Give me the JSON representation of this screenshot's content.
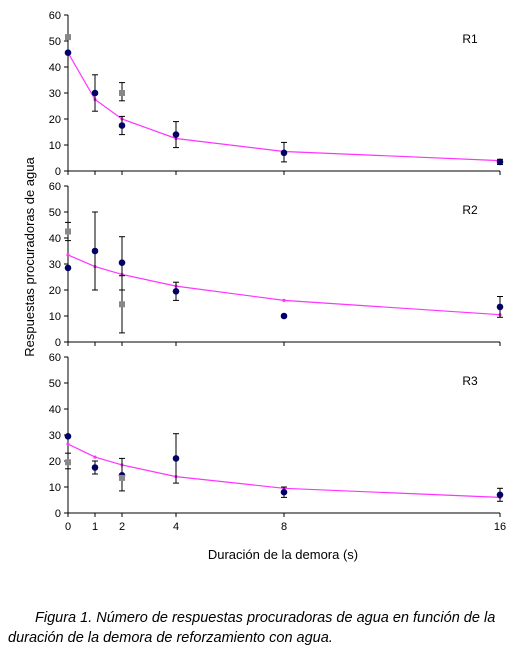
{
  "figure": {
    "ylabel": "Respuestas procuradoras de agua",
    "xlabel": "Duración de la demora (s)",
    "caption_line1": "Figura 1. Número de respuestas procuradoras de agua en función de la",
    "caption_line2": "duración de la demora de reforzamiento con agua."
  },
  "colors": {
    "fit_line": "#ff33ff",
    "blue_points": "#000066",
    "gray_points": "#888888",
    "axis": "#000000"
  },
  "chart_data": [
    {
      "type": "scatter",
      "label": "R1",
      "xticks": [
        0,
        1,
        2,
        4,
        8,
        16
      ],
      "yticks": [
        0,
        10,
        20,
        30,
        40,
        50,
        60
      ],
      "ylim": [
        0,
        60
      ],
      "series": [
        {
          "marker": "circle",
          "color": "#000066",
          "points": [
            {
              "x": 0,
              "y": 45.5
            },
            {
              "x": 1,
              "y": 30,
              "err": [
                23,
                37
              ]
            },
            {
              "x": 2,
              "y": 17.5,
              "err": [
                14,
                21
              ]
            },
            {
              "x": 4,
              "y": 14,
              "err": [
                9,
                19
              ]
            },
            {
              "x": 8,
              "y": 7,
              "err": [
                3.5,
                11
              ]
            },
            {
              "x": 16,
              "y": 3.5,
              "err": [
                2.5,
                4.5
              ]
            }
          ]
        },
        {
          "marker": "square",
          "color": "#888888",
          "points": [
            {
              "x": 0,
              "y": 51.5
            },
            {
              "x": 2,
              "y": 30,
              "err": [
                27,
                34
              ]
            }
          ]
        },
        {
          "marker": "line",
          "color": "#ff33ff",
          "points": [
            {
              "x": 0,
              "y": 45.5
            },
            {
              "x": 1,
              "y": 27.5
            },
            {
              "x": 2,
              "y": 20
            },
            {
              "x": 4,
              "y": 12.5
            },
            {
              "x": 8,
              "y": 7.5
            },
            {
              "x": 16,
              "y": 4
            }
          ]
        }
      ]
    },
    {
      "type": "scatter",
      "label": "R2",
      "xticks": [
        0,
        1,
        2,
        4,
        8,
        16
      ],
      "yticks": [
        0,
        10,
        20,
        30,
        40,
        50,
        60
      ],
      "ylim": [
        0,
        60
      ],
      "series": [
        {
          "marker": "circle",
          "color": "#000066",
          "points": [
            {
              "x": 0,
              "y": 28.5
            },
            {
              "x": 1,
              "y": 35,
              "err": [
                20,
                50
              ]
            },
            {
              "x": 2,
              "y": 30.5,
              "err": [
                20,
                40.5
              ]
            },
            {
              "x": 4,
              "y": 19.5,
              "err": [
                16,
                23
              ]
            },
            {
              "x": 8,
              "y": 10
            },
            {
              "x": 16,
              "y": 13.5,
              "err": [
                9.5,
                17.5
              ]
            }
          ]
        },
        {
          "marker": "square",
          "color": "#888888",
          "points": [
            {
              "x": 0,
              "y": 42.5,
              "err": [
                39,
                46
              ]
            },
            {
              "x": 2,
              "y": 14.5,
              "err": [
                3.5,
                25.5
              ]
            }
          ]
        },
        {
          "marker": "line",
          "color": "#ff33ff",
          "points": [
            {
              "x": 0,
              "y": 33.5
            },
            {
              "x": 1,
              "y": 29
            },
            {
              "x": 2,
              "y": 26
            },
            {
              "x": 4,
              "y": 21.5
            },
            {
              "x": 8,
              "y": 16
            },
            {
              "x": 16,
              "y": 10.5
            }
          ]
        }
      ]
    },
    {
      "type": "scatter",
      "label": "R3",
      "xticks": [
        0,
        1,
        2,
        4,
        8,
        16
      ],
      "yticks": [
        0,
        10,
        20,
        30,
        40,
        50,
        60
      ],
      "ylim": [
        0,
        60
      ],
      "series": [
        {
          "marker": "circle",
          "color": "#000066",
          "points": [
            {
              "x": 0,
              "y": 29.5
            },
            {
              "x": 1,
              "y": 17.5,
              "err": [
                15,
                20
              ]
            },
            {
              "x": 2,
              "y": 14.5,
              "err": [
                8.5,
                21
              ]
            },
            {
              "x": 4,
              "y": 21,
              "err": [
                11.5,
                30.5
              ]
            },
            {
              "x": 8,
              "y": 8,
              "err": [
                6,
                10
              ]
            },
            {
              "x": 16,
              "y": 7,
              "err": [
                4.5,
                9.5
              ]
            }
          ]
        },
        {
          "marker": "square",
          "color": "#888888",
          "points": [
            {
              "x": 0,
              "y": 19.5,
              "err": [
                17,
                23
              ]
            },
            {
              "x": 2,
              "y": 13.5
            }
          ]
        },
        {
          "marker": "line",
          "color": "#ff33ff",
          "points": [
            {
              "x": 0,
              "y": 26.5
            },
            {
              "x": 1,
              "y": 21.5
            },
            {
              "x": 2,
              "y": 18.5
            },
            {
              "x": 4,
              "y": 14
            },
            {
              "x": 8,
              "y": 9.5
            },
            {
              "x": 16,
              "y": 6
            }
          ]
        }
      ]
    }
  ]
}
